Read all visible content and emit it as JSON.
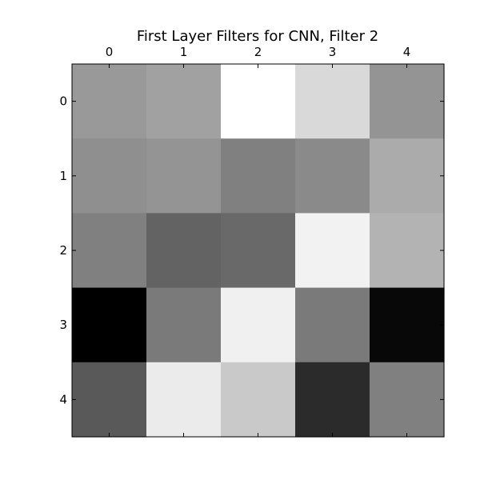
{
  "chart_data": {
    "type": "heatmap",
    "title": "First Layer Filters for CNN, Filter 2",
    "x_ticks": [
      "0",
      "1",
      "2",
      "3",
      "4"
    ],
    "y_ticks": [
      "0",
      "1",
      "2",
      "3",
      "4"
    ],
    "x_tick_position": "top",
    "colormap": "gray",
    "grid": false,
    "values": [
      [
        0.6,
        0.63,
        1.0,
        0.85,
        0.58
      ],
      [
        0.56,
        0.58,
        0.5,
        0.54,
        0.67
      ],
      [
        0.5,
        0.39,
        0.41,
        0.95,
        0.7
      ],
      [
        0.0,
        0.48,
        0.94,
        0.48,
        0.03
      ],
      [
        0.35,
        0.92,
        0.79,
        0.17,
        0.5
      ]
    ]
  }
}
